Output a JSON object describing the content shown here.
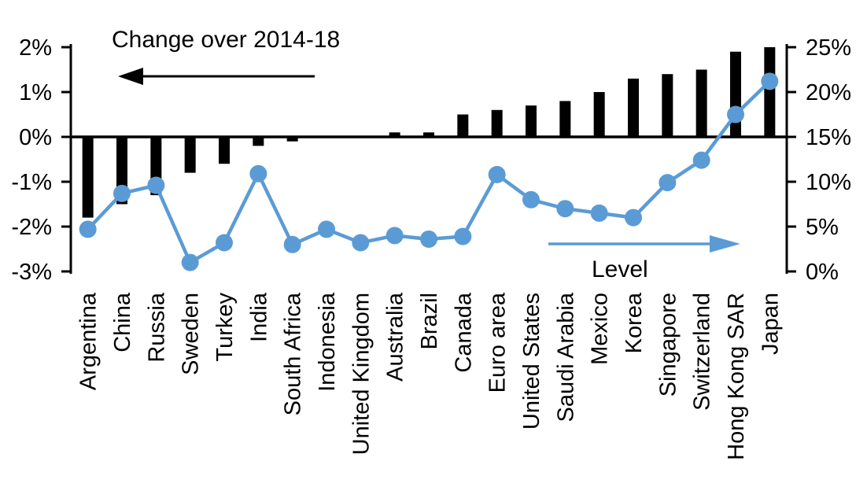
{
  "chart_data": {
    "type": "bar",
    "subtype": "combo-bar-line-dual-axis",
    "categories": [
      "Argentina",
      "China",
      "Russia",
      "Sweden",
      "Turkey",
      "India",
      "South Africa",
      "Indonesia",
      "United Kingdom",
      "Australia",
      "Brazil",
      "Canada",
      "Euro area",
      "United States",
      "Saudi Arabia",
      "Mexico",
      "Korea",
      "Singapore",
      "Switzerland",
      "Hong Kong SAR",
      "Japan"
    ],
    "series": [
      {
        "name": "Change over 2014-18",
        "type": "bar",
        "axis": "left",
        "color": "#000000",
        "values": [
          -1.8,
          -1.5,
          -1.3,
          -0.8,
          -0.6,
          -0.2,
          -0.1,
          0.0,
          0.0,
          0.1,
          0.1,
          0.5,
          0.6,
          0.7,
          0.8,
          1.0,
          1.3,
          1.4,
          1.5,
          1.9,
          2.0
        ]
      },
      {
        "name": "Level",
        "type": "line",
        "axis": "right",
        "color": "#5B9BD5",
        "values": [
          4.7,
          8.7,
          9.6,
          1.0,
          3.2,
          10.9,
          3.0,
          4.7,
          3.2,
          4.0,
          3.6,
          3.9,
          10.8,
          8.0,
          7.0,
          6.5,
          6.0,
          9.9,
          12.4,
          17.5,
          21.2
        ]
      }
    ],
    "left_axis": {
      "tick_labels": [
        "2%",
        "1%",
        "0%",
        "-1%",
        "-2%",
        "-3%"
      ],
      "tick_values": [
        2,
        1,
        0,
        -1,
        -2,
        -3
      ],
      "range": [
        -3,
        2
      ]
    },
    "right_axis": {
      "tick_labels": [
        "25%",
        "20%",
        "15%",
        "10%",
        "5%",
        "0%"
      ],
      "tick_values": [
        25,
        20,
        15,
        10,
        5,
        0
      ],
      "range": [
        0,
        25
      ]
    },
    "annotations": {
      "change": {
        "text": "Change over 2014-18",
        "arrow_direction": "left",
        "color": "#000000"
      },
      "level": {
        "text": "Level",
        "arrow_direction": "right",
        "color": "#5B9BD5"
      }
    },
    "grid": false,
    "legend_position": "none",
    "title": "",
    "xlabel": "",
    "ylabel_left": "",
    "ylabel_right": ""
  }
}
